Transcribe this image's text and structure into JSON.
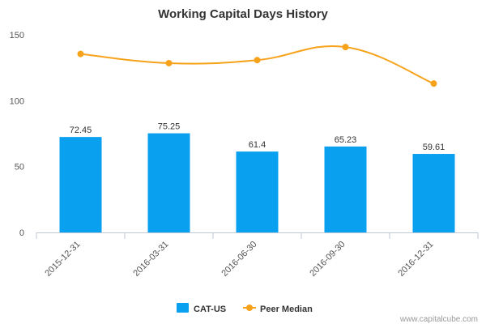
{
  "chart_data": {
    "type": "bar",
    "title": "Working Capital Days History",
    "categories": [
      "2015-12-31",
      "2016-03-31",
      "2016-06-30",
      "2016-09-30",
      "2016-12-31"
    ],
    "series": [
      {
        "name": "CAT-US",
        "kind": "bar",
        "values": [
          72.45,
          75.25,
          61.4,
          65.23,
          59.61
        ],
        "labels": [
          "72.45",
          "75.25",
          "61.4",
          "65.23",
          "59.61"
        ],
        "color": "#0aa0f0"
      },
      {
        "name": "Peer Median",
        "kind": "line",
        "values": [
          135.5,
          128.5,
          130.8,
          140.7,
          113.0
        ],
        "color": "#f7a21b"
      }
    ],
    "yticks": [
      0,
      50,
      100,
      150
    ],
    "ylim": [
      0,
      150
    ],
    "grid": false,
    "legend_position": "bottom-center"
  },
  "watermark": "www.capitalcube.com"
}
